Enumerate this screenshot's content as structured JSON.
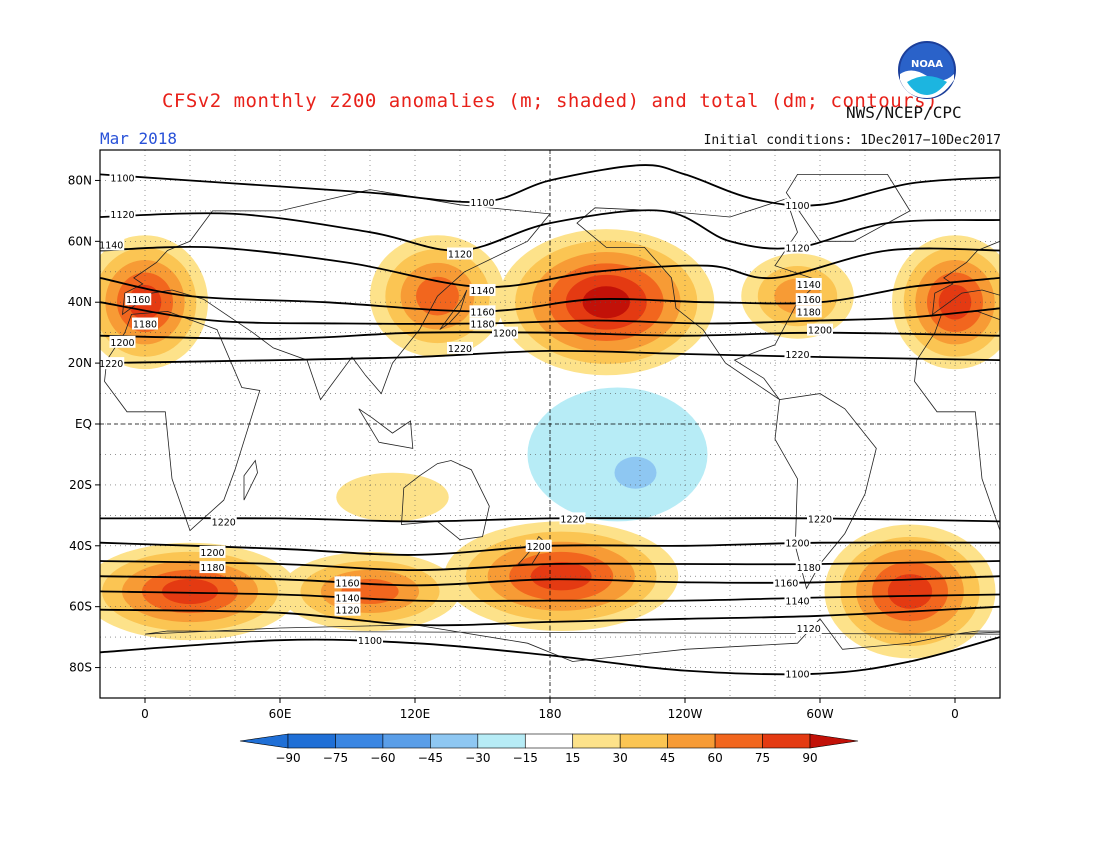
{
  "title": "CFSv2 monthly z200 anomalies (m; shaded) and total (dm; contours)",
  "date_label": "Mar 2018",
  "credit": "NWS/NCEP/CPC",
  "initial_conditions": "Initial conditions: 1Dec2017−10Dec2017",
  "logo": {
    "text": "NOAA",
    "icon": "noaa-logo-icon"
  },
  "colors": {
    "title": "#e8211a",
    "date": "#2851d8",
    "neg90": "#1f6fd6",
    "neg75": "#3a86e2",
    "neg60": "#5a9ee8",
    "neg45": "#8ec7f2",
    "neg30": "#b7ecf6",
    "neutral": "#ffffff",
    "pos15": "#fde28a",
    "pos30": "#fbc553",
    "pos45": "#f79b35",
    "pos60": "#f2661e",
    "pos75": "#e43a12",
    "pos90": "#c21108"
  },
  "chart_data": {
    "type": "heatmap",
    "projection": "cylindrical equidistant",
    "lon_range": [
      -20,
      380
    ],
    "lat_range": [
      -90,
      90
    ],
    "x_tick_labels": [
      "0",
      "60E",
      "120E",
      "180",
      "120W",
      "60W",
      "0"
    ],
    "y_tick_labels": [
      "80N",
      "60N",
      "40N",
      "20N",
      "EQ",
      "20S",
      "40S",
      "60S",
      "80S"
    ],
    "colorbar": {
      "labels": [
        "-90",
        "-75",
        "-60",
        "-45",
        "-30",
        "-15",
        "15",
        "30",
        "45",
        "60",
        "75",
        "90"
      ],
      "units": "m"
    },
    "contours_dm": [
      {
        "level": "1100",
        "points": [
          [
            -20,
            82
          ],
          [
            40,
            79
          ],
          [
            100,
            76
          ],
          [
            150,
            73
          ],
          [
            180,
            80
          ],
          [
            220,
            85
          ],
          [
            240,
            82
          ],
          [
            270,
            74
          ],
          [
            300,
            72
          ],
          [
            340,
            79
          ],
          [
            380,
            81
          ]
        ],
        "labels": [
          [
            -10,
            81
          ],
          [
            150,
            73
          ],
          [
            290,
            72
          ],
          [
            290,
            -82
          ],
          [
            100,
            -71
          ]
        ]
      },
      {
        "level": "1120",
        "points": [
          [
            -20,
            68
          ],
          [
            40,
            69
          ],
          [
            100,
            63
          ],
          [
            140,
            57
          ],
          [
            180,
            66
          ],
          [
            230,
            70
          ],
          [
            260,
            60
          ],
          [
            290,
            58
          ],
          [
            330,
            66
          ],
          [
            380,
            67
          ]
        ],
        "labels": [
          [
            -10,
            69
          ],
          [
            140,
            56
          ],
          [
            290,
            58
          ],
          [
            295,
            -67
          ],
          [
            90,
            -61
          ]
        ]
      },
      {
        "level": "1140",
        "points": [
          [
            -20,
            57
          ],
          [
            30,
            58
          ],
          [
            90,
            53
          ],
          [
            150,
            45
          ],
          [
            200,
            50
          ],
          [
            250,
            52
          ],
          [
            280,
            48
          ],
          [
            330,
            57
          ],
          [
            380,
            57
          ]
        ],
        "labels": [
          [
            -15,
            59
          ],
          [
            150,
            44
          ],
          [
            295,
            46
          ],
          [
            290,
            -58
          ],
          [
            90,
            -57
          ]
        ]
      },
      {
        "level": "1160",
        "points": [
          [
            -20,
            48
          ],
          [
            20,
            42
          ],
          [
            80,
            40
          ],
          [
            150,
            37
          ],
          [
            200,
            41
          ],
          [
            250,
            40
          ],
          [
            300,
            40
          ],
          [
            340,
            45
          ],
          [
            380,
            48
          ]
        ],
        "labels": [
          [
            -3,
            41
          ],
          [
            150,
            37
          ],
          [
            295,
            41
          ],
          [
            285,
            -52
          ],
          [
            90,
            -52
          ]
        ]
      },
      {
        "level": "1180",
        "points": [
          [
            -20,
            40
          ],
          [
            30,
            34
          ],
          [
            90,
            33
          ],
          [
            150,
            33
          ],
          [
            200,
            34
          ],
          [
            250,
            33
          ],
          [
            300,
            34
          ],
          [
            340,
            35
          ],
          [
            380,
            38
          ]
        ],
        "labels": [
          [
            0,
            33
          ],
          [
            150,
            33
          ],
          [
            295,
            37
          ],
          [
            295,
            -47
          ],
          [
            30,
            -47
          ]
        ]
      },
      {
        "level": "1200",
        "points": [
          [
            -20,
            29
          ],
          [
            60,
            28
          ],
          [
            120,
            30
          ],
          [
            180,
            30
          ],
          [
            240,
            29
          ],
          [
            300,
            30
          ],
          [
            380,
            29
          ]
        ],
        "labels": [
          [
            -10,
            27
          ],
          [
            160,
            30
          ],
          [
            300,
            31
          ],
          [
            30,
            -42
          ],
          [
            175,
            -40
          ],
          [
            290,
            -39
          ]
        ]
      },
      {
        "level": "1220",
        "points": [
          [
            -20,
            20
          ],
          [
            60,
            21
          ],
          [
            120,
            22
          ],
          [
            180,
            24
          ],
          [
            240,
            23
          ],
          [
            300,
            22
          ],
          [
            380,
            21
          ]
        ],
        "labels": [
          [
            -15,
            20
          ],
          [
            140,
            25
          ],
          [
            290,
            23
          ],
          [
            35,
            -32
          ],
          [
            190,
            -31
          ],
          [
            300,
            -31
          ]
        ]
      },
      {
        "level": "1220",
        "points": [
          [
            -20,
            -31
          ],
          [
            60,
            -31
          ],
          [
            120,
            -32
          ],
          [
            180,
            -31
          ],
          [
            240,
            -31
          ],
          [
            300,
            -31
          ],
          [
            380,
            -32
          ]
        ]
      },
      {
        "level": "1200",
        "points": [
          [
            -20,
            -39
          ],
          [
            60,
            -41
          ],
          [
            120,
            -43
          ],
          [
            180,
            -40
          ],
          [
            240,
            -40
          ],
          [
            300,
            -39
          ],
          [
            380,
            -39
          ]
        ]
      },
      {
        "level": "1180",
        "points": [
          [
            -20,
            -45
          ],
          [
            60,
            -46
          ],
          [
            120,
            -48
          ],
          [
            180,
            -46
          ],
          [
            240,
            -46
          ],
          [
            300,
            -46
          ],
          [
            380,
            -45
          ]
        ]
      },
      {
        "level": "1160",
        "points": [
          [
            -20,
            -50
          ],
          [
            60,
            -51
          ],
          [
            120,
            -53
          ],
          [
            180,
            -51
          ],
          [
            240,
            -52
          ],
          [
            300,
            -52
          ],
          [
            380,
            -50
          ]
        ]
      },
      {
        "level": "1140",
        "points": [
          [
            -20,
            -55
          ],
          [
            60,
            -56
          ],
          [
            120,
            -58
          ],
          [
            180,
            -58
          ],
          [
            240,
            -58
          ],
          [
            300,
            -57
          ],
          [
            380,
            -56
          ]
        ]
      },
      {
        "level": "1120",
        "points": [
          [
            -20,
            -61
          ],
          [
            60,
            -62
          ],
          [
            120,
            -66
          ],
          [
            180,
            -65
          ],
          [
            240,
            -64
          ],
          [
            300,
            -63
          ],
          [
            380,
            -60
          ]
        ]
      },
      {
        "level": "1100",
        "points": [
          [
            -20,
            -75
          ],
          [
            60,
            -71
          ],
          [
            120,
            -72
          ],
          [
            180,
            -76
          ],
          [
            240,
            -81
          ],
          [
            300,
            -82
          ],
          [
            340,
            -78
          ],
          [
            380,
            -70
          ]
        ]
      }
    ],
    "anomaly_blobs": [
      {
        "lon": 0,
        "lat": 40,
        "rlon": 28,
        "rlat": 22,
        "levels": [
          15,
          30,
          45,
          60,
          75
        ]
      },
      {
        "lon": 360,
        "lat": 40,
        "rlon": 28,
        "rlat": 22,
        "levels": [
          15,
          30,
          45,
          60,
          75
        ]
      },
      {
        "lon": 130,
        "lat": 42,
        "rlon": 30,
        "rlat": 20,
        "levels": [
          15,
          30,
          45,
          60
        ]
      },
      {
        "lon": 205,
        "lat": 40,
        "rlon": 48,
        "rlat": 24,
        "levels": [
          15,
          30,
          45,
          60,
          75,
          90
        ]
      },
      {
        "lon": 290,
        "lat": 42,
        "rlon": 25,
        "rlat": 14,
        "levels": [
          15,
          30,
          45
        ]
      },
      {
        "lon": 20,
        "lat": -55,
        "rlon": 48,
        "rlat": 16,
        "levels": [
          15,
          30,
          45,
          60,
          75
        ]
      },
      {
        "lon": 100,
        "lat": -55,
        "rlon": 40,
        "rlat": 13,
        "levels": [
          15,
          30,
          45,
          60
        ]
      },
      {
        "lon": 185,
        "lat": -50,
        "rlon": 52,
        "rlat": 18,
        "levels": [
          15,
          30,
          45,
          60,
          75
        ]
      },
      {
        "lon": 340,
        "lat": -55,
        "rlon": 38,
        "rlat": 22,
        "levels": [
          15,
          30,
          45,
          60,
          75
        ]
      },
      {
        "lon": 110,
        "lat": -24,
        "rlon": 25,
        "rlat": 8,
        "levels": [
          15
        ]
      },
      {
        "lon": 210,
        "lat": -10,
        "rlon": 40,
        "rlat": 22,
        "levels": [
          -15
        ]
      },
      {
        "lon": 218,
        "lat": -16,
        "rlon": 16,
        "rlat": 9,
        "levels": [
          -15,
          -30
        ]
      }
    ]
  }
}
